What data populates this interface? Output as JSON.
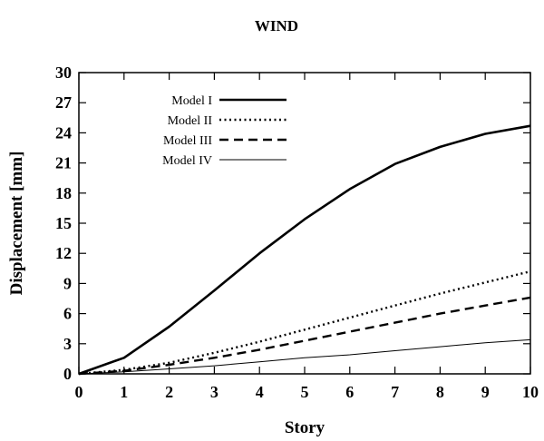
{
  "chart_data": {
    "type": "line",
    "title": "WIND",
    "xlabel": "Story",
    "ylabel": "Displacement [mm]",
    "xlim": [
      0,
      10
    ],
    "ylim": [
      0,
      30
    ],
    "x_ticks": [
      "0",
      "1",
      "2",
      "3",
      "4",
      "5",
      "6",
      "7",
      "8",
      "9",
      "10"
    ],
    "y_ticks": [
      "0",
      "3",
      "6",
      "9",
      "12",
      "15",
      "18",
      "21",
      "24",
      "27",
      "30"
    ],
    "grid": false,
    "legend_position": "top-left",
    "x": [
      0,
      1,
      2,
      3,
      4,
      5,
      6,
      7,
      8,
      9,
      10
    ],
    "series": [
      {
        "name": "Model I",
        "style": "solid-thick",
        "values": [
          0,
          1.6,
          4.7,
          8.3,
          12.0,
          15.4,
          18.4,
          20.9,
          22.6,
          23.9,
          24.7
        ]
      },
      {
        "name": "Model II",
        "style": "dotted",
        "values": [
          0,
          0.4,
          1.1,
          2.1,
          3.2,
          4.4,
          5.6,
          6.8,
          8.0,
          9.1,
          10.2
        ]
      },
      {
        "name": "Model III",
        "style": "dashed",
        "values": [
          0,
          0.3,
          0.9,
          1.6,
          2.4,
          3.3,
          4.2,
          5.1,
          6.0,
          6.8,
          7.6
        ]
      },
      {
        "name": "Model IV",
        "style": "solid-thin",
        "values": [
          0,
          0.2,
          0.5,
          0.8,
          1.2,
          1.6,
          1.9,
          2.3,
          2.7,
          3.1,
          3.4
        ]
      }
    ]
  }
}
